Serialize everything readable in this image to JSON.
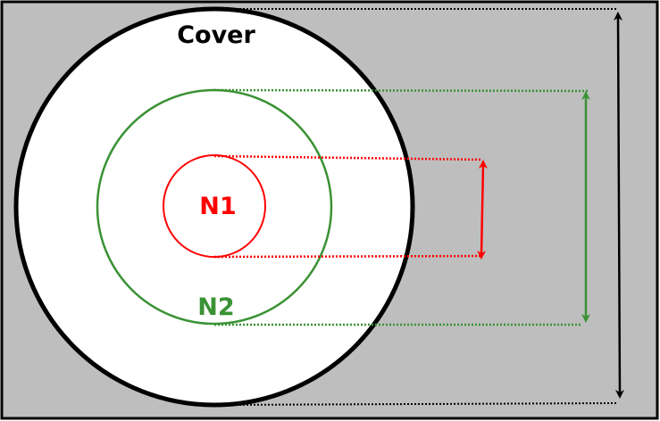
{
  "labels": {
    "cover": "Cover",
    "n1": "N1",
    "n2": "N2"
  },
  "colors": {
    "background": "#bebebe",
    "cover": "#000000",
    "n1": "#ff0000",
    "n2": "#3a9234",
    "fill": "#ffffff"
  }
}
